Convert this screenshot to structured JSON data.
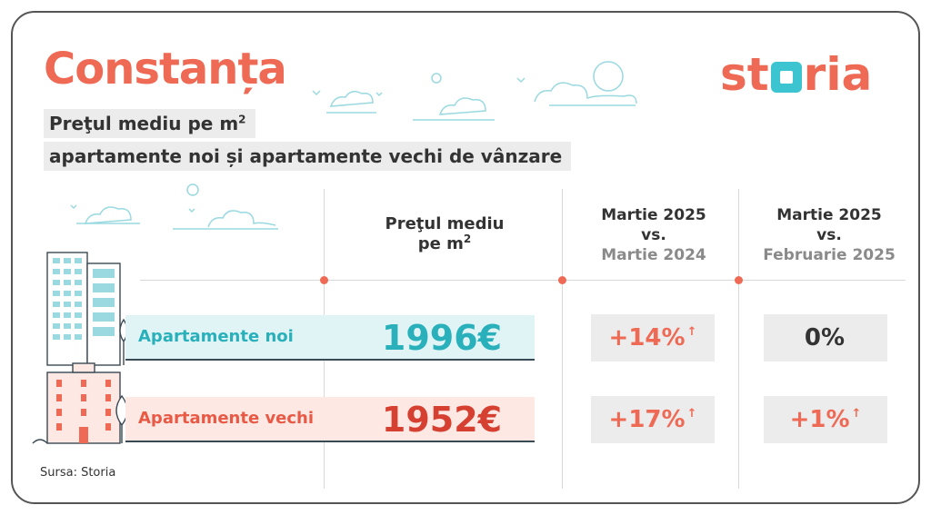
{
  "header": {
    "city": "Constanța",
    "logo_left": "st",
    "logo_right": "ria"
  },
  "subtitle": {
    "line1_text": "Preţul mediu pe m",
    "line1_sup": "2",
    "line2": "apartamente noi și apartamente vechi de vânzare"
  },
  "columns": {
    "price": {
      "line1": "Preţul mediu",
      "line2": "pe m",
      "sup": "2"
    },
    "yoy": {
      "line1": "Martie 2025",
      "line2": "vs.",
      "line3": "Martie 2024"
    },
    "mom": {
      "line1": "Martie 2025",
      "line2": "vs.",
      "line3": "Februarie 2025"
    }
  },
  "rows": [
    {
      "label": "Apartamente noi",
      "price": "1996€",
      "yoy": "+14%",
      "yoy_arrow": "↑",
      "mom": "0%",
      "mom_arrow": ""
    },
    {
      "label": "Apartamente vechi",
      "price": "1952€",
      "yoy": "+17%",
      "yoy_arrow": "↑",
      "mom": "+1%",
      "mom_arrow": "↑"
    }
  ],
  "source": "Sursa: Storia",
  "colors": {
    "accent_coral": "#ee6a55",
    "accent_teal": "#29b0bb",
    "badge_bg": "#ececec"
  }
}
